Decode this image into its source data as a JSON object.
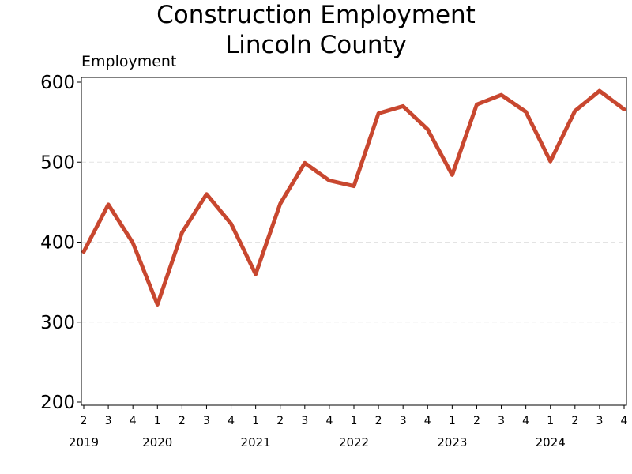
{
  "chart_data": {
    "type": "line",
    "title": [
      "Construction Employment",
      "Lincoln County"
    ],
    "ylabel": "Employment",
    "xlabel": "",
    "ylim": [
      200,
      600
    ],
    "yticks": [
      200,
      300,
      400,
      500,
      600
    ],
    "grid": "horizontal dashed",
    "x": [
      {
        "q": "2",
        "year": "2019"
      },
      {
        "q": "3",
        "year": "2019"
      },
      {
        "q": "4",
        "year": "2019"
      },
      {
        "q": "1",
        "year": "2020"
      },
      {
        "q": "2",
        "year": "2020"
      },
      {
        "q": "3",
        "year": "2020"
      },
      {
        "q": "4",
        "year": "2020"
      },
      {
        "q": "1",
        "year": "2021"
      },
      {
        "q": "2",
        "year": "2021"
      },
      {
        "q": "3",
        "year": "2021"
      },
      {
        "q": "4",
        "year": "2021"
      },
      {
        "q": "1",
        "year": "2022"
      },
      {
        "q": "2",
        "year": "2022"
      },
      {
        "q": "3",
        "year": "2022"
      },
      {
        "q": "4",
        "year": "2022"
      },
      {
        "q": "1",
        "year": "2023"
      },
      {
        "q": "2",
        "year": "2023"
      },
      {
        "q": "3",
        "year": "2023"
      },
      {
        "q": "4",
        "year": "2023"
      },
      {
        "q": "1",
        "year": "2024"
      },
      {
        "q": "2",
        "year": "2024"
      },
      {
        "q": "3",
        "year": "2024"
      },
      {
        "q": "4",
        "year": "2024"
      }
    ],
    "years": [
      "2019",
      "2020",
      "2021",
      "2022",
      "2023",
      "2024"
    ],
    "series": [
      {
        "color": "#c8472f",
        "values": [
          388,
          447,
          399,
          322,
          412,
          460,
          423,
          360,
          448,
          499,
          477,
          470,
          561,
          570,
          541,
          484,
          572,
          584,
          563,
          501,
          564,
          589,
          566
        ]
      }
    ]
  }
}
